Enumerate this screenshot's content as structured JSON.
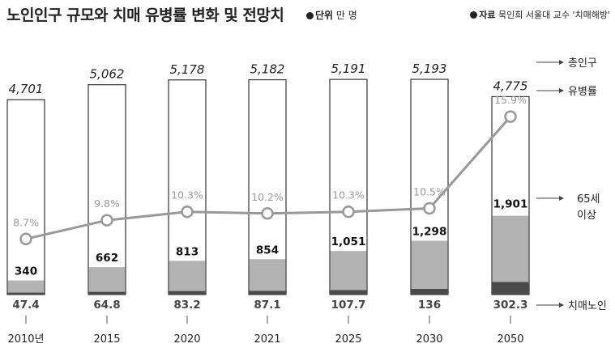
{
  "header": {
    "title": "노인인구 규모와 치매 유병률 변화 및 전망치",
    "unit_label": "단위",
    "unit_value": "만 명",
    "source_label": "자료",
    "source_value": "묵인희 서울대 교수 '치매해방'"
  },
  "colors": {
    "bar_border": "#333333",
    "elderly_fill": "#b3b3b3",
    "dementia_fill": "#4a4a4a",
    "line": "#999999",
    "marker_fill": "#ffffff"
  },
  "chart_data": {
    "type": "bar+line",
    "title": "노인인구 규모와 치매 유병률 변화 및 전망치",
    "categories": [
      "2010년",
      "2015",
      "2020",
      "2021",
      "2025",
      "2030",
      "2050"
    ],
    "series": [
      {
        "name": "총인구",
        "unit": "만 명",
        "values": [
          4701,
          5062,
          5178,
          5182,
          5191,
          5193,
          4775
        ],
        "labels": [
          "4,701",
          "5,062",
          "5,178",
          "5,182",
          "5,191",
          "5,193",
          "4,775"
        ]
      },
      {
        "name": "65세 이상",
        "unit": "만 명",
        "values": [
          340,
          662,
          813,
          854,
          1051,
          1298,
          1901
        ],
        "labels": [
          "340",
          "662",
          "813",
          "854",
          "1,051",
          "1,298",
          "1,901"
        ]
      },
      {
        "name": "치매노인",
        "unit": "만 명",
        "values": [
          47.4,
          64.8,
          83.2,
          87.1,
          107.7,
          136,
          302.3
        ],
        "labels": [
          "47.4",
          "64.8",
          "83.2",
          "87.1",
          "107.7",
          "136",
          "302.3"
        ]
      },
      {
        "name": "유병률",
        "unit": "%",
        "values": [
          8.7,
          9.8,
          10.3,
          10.2,
          10.3,
          10.5,
          15.9
        ],
        "labels": [
          "8.7%",
          "9.8%",
          "10.3%",
          "10.2%",
          "10.3%",
          "10.5%",
          "15.9%"
        ]
      }
    ],
    "legend": {
      "total": "총인구",
      "rate": "유병률",
      "elderly_line1": "65세",
      "elderly_line2": "이상",
      "dementia": "치매노인"
    }
  }
}
